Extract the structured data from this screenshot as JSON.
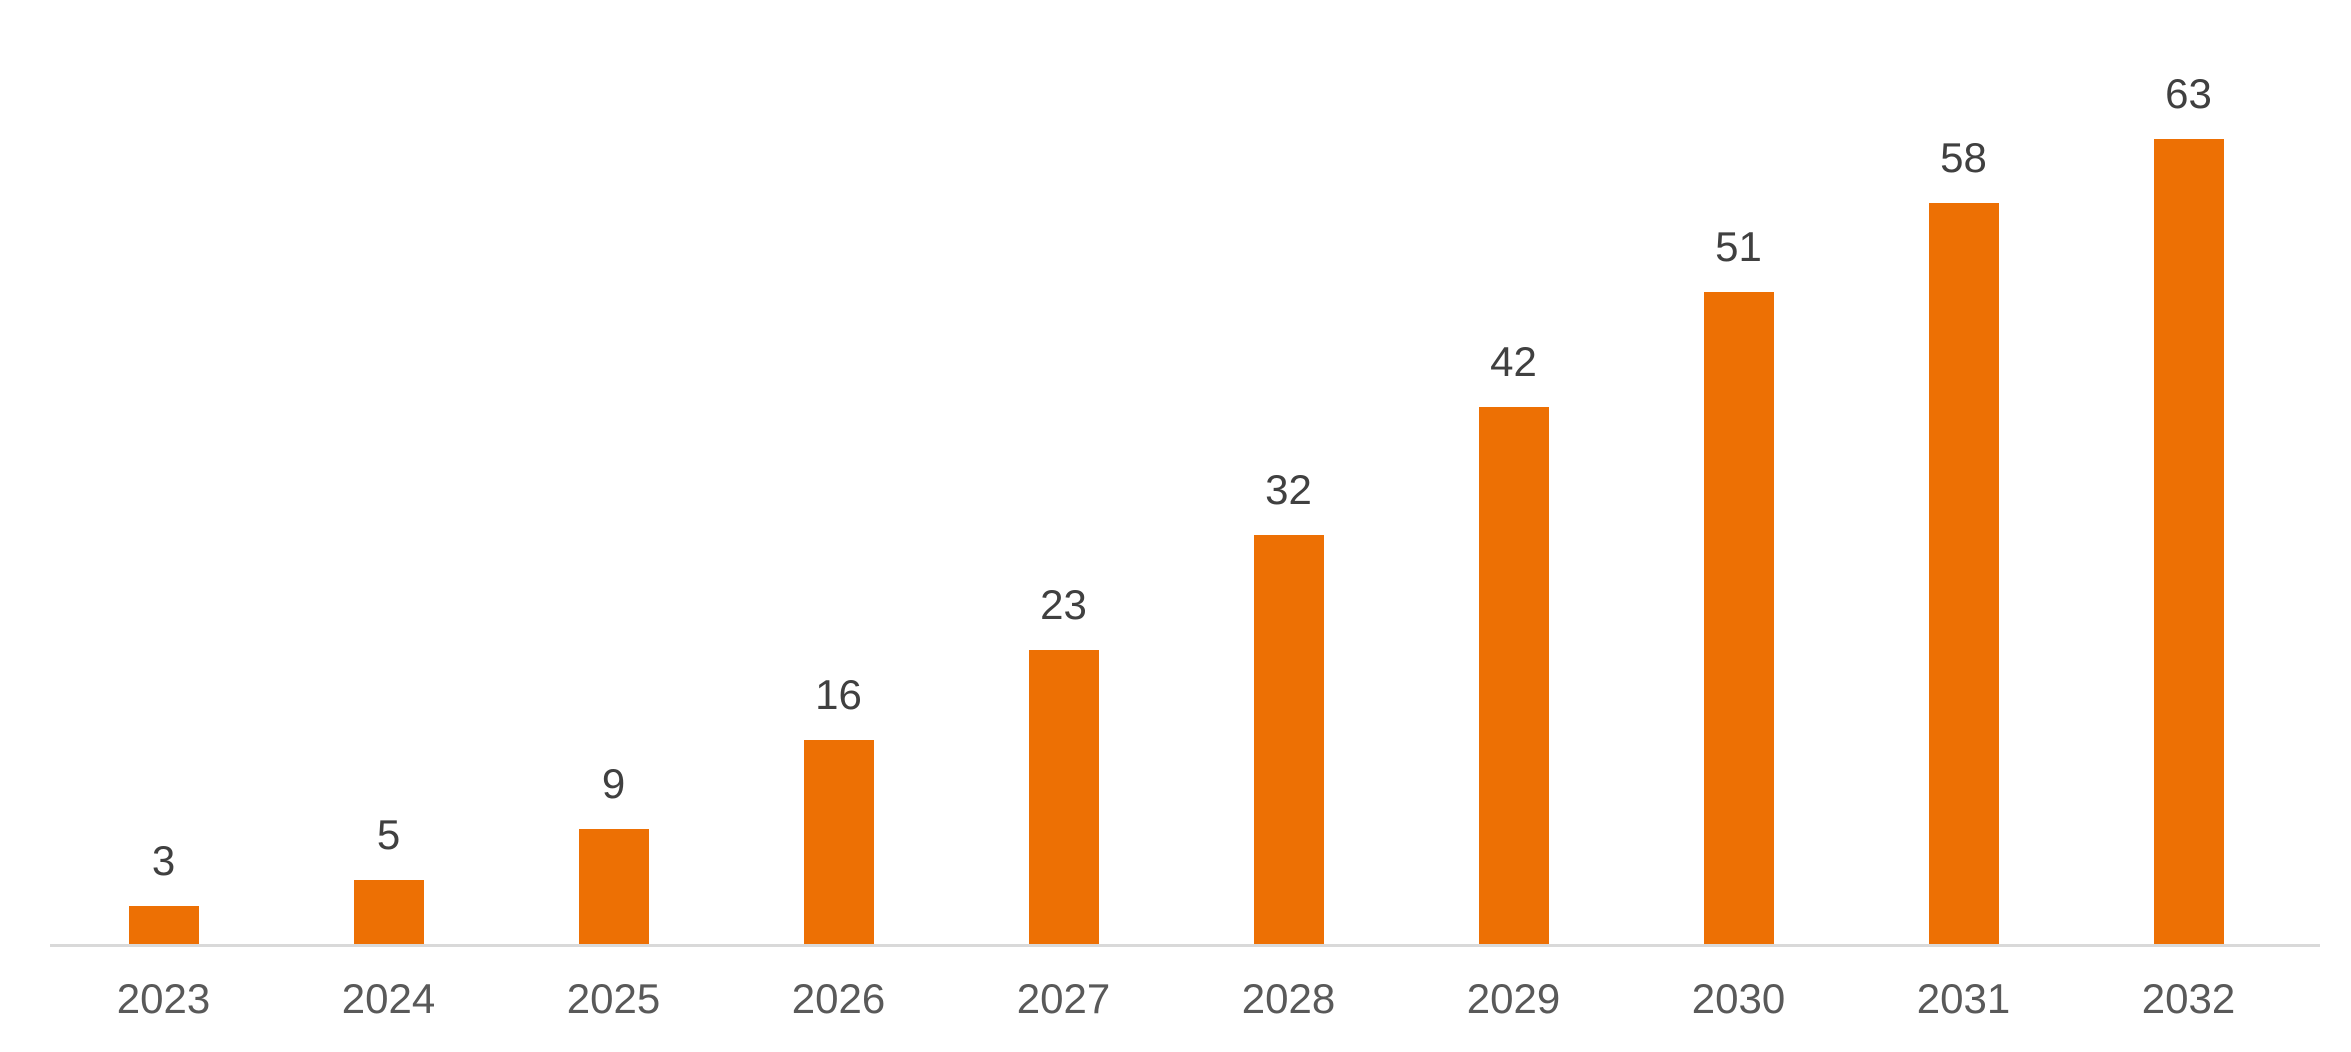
{
  "chart_data": {
    "type": "bar",
    "title": "",
    "xlabel": "",
    "ylabel": "",
    "categories": [
      "2023",
      "2024",
      "2025",
      "2026",
      "2027",
      "2028",
      "2029",
      "2030",
      "2031",
      "2032"
    ],
    "values": [
      3,
      5,
      9,
      16,
      23,
      32,
      42,
      51,
      58,
      63
    ],
    "series_name": "",
    "ylim": [
      0,
      63
    ],
    "grid": false,
    "legend_position": "none",
    "data_labels": true,
    "colors": {
      "bar": "#ED7004",
      "value_label": "#404040",
      "axis_label": "#595959",
      "axis_line": "#D9D9D9",
      "background": "#FFFFFF"
    }
  }
}
